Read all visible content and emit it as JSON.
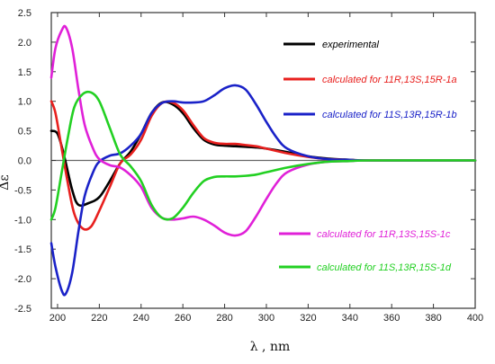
{
  "chart_data": {
    "type": "line",
    "xlabel": "λ , nm",
    "ylabel": "Δε",
    "xlim": [
      197,
      400
    ],
    "ylim": [
      -2.5,
      2.5
    ],
    "xticks": [
      200,
      220,
      240,
      260,
      280,
      300,
      320,
      340,
      360,
      380,
      400
    ],
    "yticks": [
      -2.5,
      -2.0,
      -1.5,
      -1.0,
      -0.5,
      0.0,
      0.5,
      1.0,
      1.5,
      2.0,
      2.5
    ],
    "ytick_labels": [
      "-2.5",
      "-2.0",
      "-1.5",
      "-1.0",
      "-0.5",
      "0.0",
      "0.5",
      "1.0",
      "1.5",
      "2.0",
      "2.5"
    ],
    "zero_line": true,
    "grid": false,
    "series": [
      {
        "name": "experimental",
        "color": "#000000",
        "points": [
          [
            197,
            0.5
          ],
          [
            200,
            0.45
          ],
          [
            203,
            0.1
          ],
          [
            207,
            -0.5
          ],
          [
            210,
            -0.75
          ],
          [
            215,
            -0.72
          ],
          [
            220,
            -0.62
          ],
          [
            225,
            -0.35
          ],
          [
            230,
            -0.05
          ],
          [
            235,
            0.15
          ],
          [
            240,
            0.45
          ],
          [
            245,
            0.8
          ],
          [
            250,
            0.98
          ],
          [
            255,
            0.95
          ],
          [
            260,
            0.8
          ],
          [
            265,
            0.55
          ],
          [
            270,
            0.35
          ],
          [
            275,
            0.27
          ],
          [
            280,
            0.25
          ],
          [
            285,
            0.24
          ],
          [
            290,
            0.23
          ],
          [
            295,
            0.22
          ],
          [
            300,
            0.2
          ],
          [
            310,
            0.14
          ],
          [
            320,
            0.07
          ],
          [
            330,
            0.03
          ],
          [
            340,
            0.01
          ],
          [
            350,
            0.0
          ],
          [
            400,
            0.0
          ]
        ]
      },
      {
        "name": "calculated for 11R,13S,15R-1a",
        "color": "#e8201e",
        "points": [
          [
            197,
            1.0
          ],
          [
            199,
            0.8
          ],
          [
            202,
            0.2
          ],
          [
            205,
            -0.4
          ],
          [
            208,
            -0.9
          ],
          [
            212,
            -1.15
          ],
          [
            216,
            -1.12
          ],
          [
            220,
            -0.85
          ],
          [
            225,
            -0.45
          ],
          [
            230,
            -0.05
          ],
          [
            235,
            0.1
          ],
          [
            240,
            0.35
          ],
          [
            245,
            0.75
          ],
          [
            250,
            0.97
          ],
          [
            255,
            0.98
          ],
          [
            260,
            0.85
          ],
          [
            265,
            0.6
          ],
          [
            270,
            0.38
          ],
          [
            275,
            0.3
          ],
          [
            280,
            0.28
          ],
          [
            285,
            0.28
          ],
          [
            290,
            0.26
          ],
          [
            295,
            0.24
          ],
          [
            300,
            0.2
          ],
          [
            310,
            0.12
          ],
          [
            320,
            0.06
          ],
          [
            330,
            0.02
          ],
          [
            340,
            0.01
          ],
          [
            350,
            0.0
          ],
          [
            400,
            0.0
          ]
        ]
      },
      {
        "name": "calculated for 11S,13R,15R-1b",
        "color": "#1a22c8",
        "points": [
          [
            197,
            -1.4
          ],
          [
            199,
            -1.8
          ],
          [
            202,
            -2.2
          ],
          [
            204,
            -2.25
          ],
          [
            207,
            -1.9
          ],
          [
            210,
            -1.2
          ],
          [
            213,
            -0.6
          ],
          [
            217,
            -0.2
          ],
          [
            220,
            -0.02
          ],
          [
            225,
            0.08
          ],
          [
            230,
            0.12
          ],
          [
            235,
            0.25
          ],
          [
            240,
            0.45
          ],
          [
            245,
            0.8
          ],
          [
            250,
            0.97
          ],
          [
            255,
            1.0
          ],
          [
            260,
            0.98
          ],
          [
            265,
            0.98
          ],
          [
            270,
            1.0
          ],
          [
            275,
            1.1
          ],
          [
            280,
            1.22
          ],
          [
            285,
            1.27
          ],
          [
            290,
            1.2
          ],
          [
            295,
            0.95
          ],
          [
            300,
            0.65
          ],
          [
            305,
            0.38
          ],
          [
            310,
            0.2
          ],
          [
            320,
            0.07
          ],
          [
            330,
            0.02
          ],
          [
            340,
            0.01
          ],
          [
            350,
            0.0
          ],
          [
            400,
            0.0
          ]
        ]
      },
      {
        "name": "calculated for 11R,13S,15S-1c",
        "color": "#e020d8",
        "points": [
          [
            197,
            1.4
          ],
          [
            199,
            1.9
          ],
          [
            202,
            2.2
          ],
          [
            204,
            2.25
          ],
          [
            207,
            1.9
          ],
          [
            210,
            1.2
          ],
          [
            213,
            0.6
          ],
          [
            217,
            0.2
          ],
          [
            220,
            0.02
          ],
          [
            225,
            -0.08
          ],
          [
            230,
            -0.12
          ],
          [
            235,
            -0.25
          ],
          [
            240,
            -0.45
          ],
          [
            245,
            -0.8
          ],
          [
            250,
            -0.97
          ],
          [
            255,
            -1.0
          ],
          [
            260,
            -0.98
          ],
          [
            265,
            -0.95
          ],
          [
            270,
            -1.0
          ],
          [
            275,
            -1.1
          ],
          [
            280,
            -1.22
          ],
          [
            285,
            -1.27
          ],
          [
            290,
            -1.2
          ],
          [
            295,
            -0.95
          ],
          [
            300,
            -0.65
          ],
          [
            305,
            -0.38
          ],
          [
            310,
            -0.2
          ],
          [
            320,
            -0.07
          ],
          [
            330,
            -0.02
          ],
          [
            340,
            -0.01
          ],
          [
            350,
            0.0
          ],
          [
            400,
            0.0
          ]
        ]
      },
      {
        "name": "calculated for 11S,13R,15S-1d",
        "color": "#22d022",
        "points": [
          [
            197,
            -1.0
          ],
          [
            199,
            -0.8
          ],
          [
            202,
            -0.2
          ],
          [
            205,
            0.4
          ],
          [
            208,
            0.9
          ],
          [
            212,
            1.12
          ],
          [
            216,
            1.15
          ],
          [
            220,
            1.0
          ],
          [
            225,
            0.55
          ],
          [
            230,
            0.1
          ],
          [
            235,
            -0.1
          ],
          [
            240,
            -0.35
          ],
          [
            245,
            -0.75
          ],
          [
            250,
            -0.97
          ],
          [
            255,
            -0.98
          ],
          [
            260,
            -0.8
          ],
          [
            265,
            -0.55
          ],
          [
            270,
            -0.35
          ],
          [
            275,
            -0.28
          ],
          [
            280,
            -0.27
          ],
          [
            285,
            -0.27
          ],
          [
            290,
            -0.26
          ],
          [
            295,
            -0.24
          ],
          [
            300,
            -0.2
          ],
          [
            310,
            -0.12
          ],
          [
            320,
            -0.06
          ],
          [
            330,
            -0.02
          ],
          [
            340,
            -0.01
          ],
          [
            350,
            0.0
          ],
          [
            400,
            0.0
          ]
        ]
      }
    ]
  }
}
